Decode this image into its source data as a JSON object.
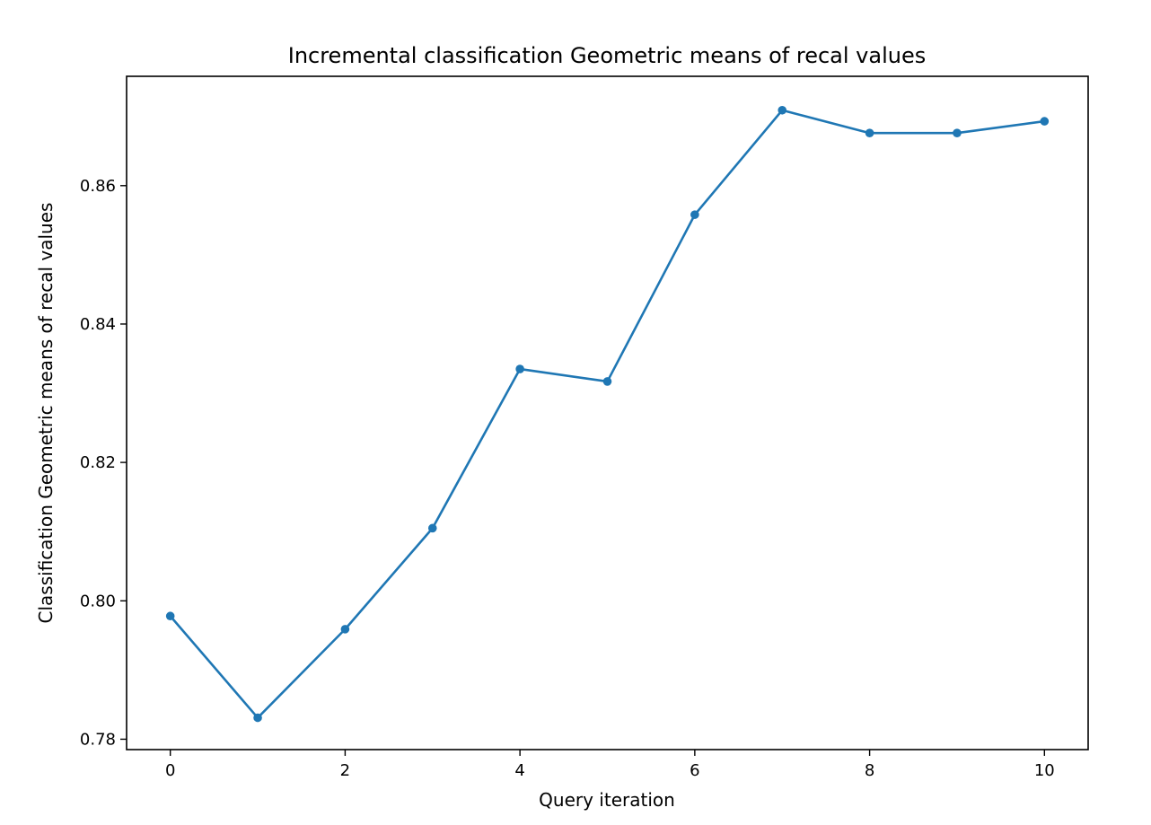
{
  "chart_data": {
    "type": "line",
    "title": "Incremental classification Geometric means of recal values",
    "xlabel": "Query iteration",
    "ylabel": "Classification Geometric means of recal values",
    "x": [
      0,
      1,
      2,
      3,
      4,
      5,
      6,
      7,
      8,
      9,
      10
    ],
    "series": [
      {
        "values": [
          0.7978,
          0.7831,
          0.7959,
          0.8105,
          0.8335,
          0.8317,
          0.8558,
          0.8709,
          0.8676,
          0.8676,
          0.8693
        ]
      }
    ],
    "xlim": [
      -0.5,
      10.5
    ],
    "ylim": [
      0.7785,
      0.8758
    ],
    "xticks": [
      0,
      2,
      4,
      6,
      8,
      10
    ],
    "xtick_labels": [
      "0",
      "2",
      "4",
      "6",
      "8",
      "10"
    ],
    "yticks": [
      0.78,
      0.8,
      0.82,
      0.84,
      0.86
    ],
    "ytick_labels": [
      "0.78",
      "0.80",
      "0.82",
      "0.84",
      "0.86"
    ],
    "grid": false,
    "marker": "circle",
    "line_color": "#1f77b4"
  }
}
